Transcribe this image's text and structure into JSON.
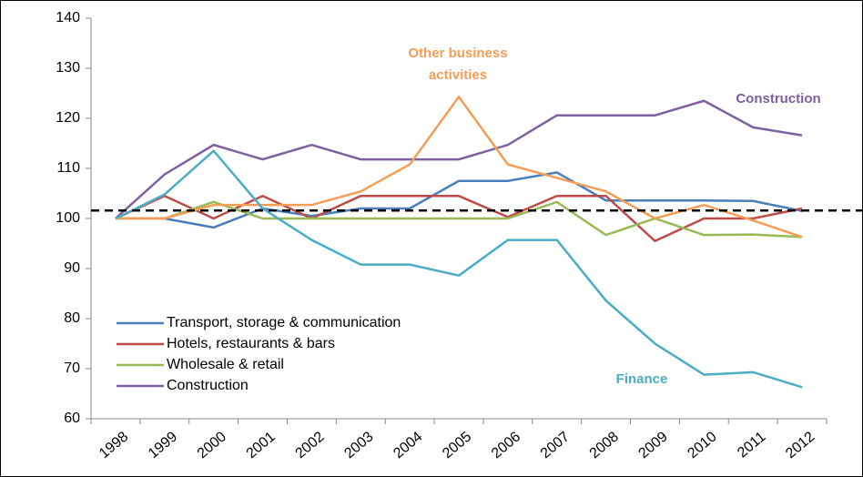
{
  "chart_data": {
    "type": "line",
    "categories": [
      "1998",
      "1999",
      "2000",
      "2001",
      "2002",
      "2003",
      "2004",
      "2005",
      "2006",
      "2007",
      "2008",
      "2009",
      "2010",
      "2011",
      "2012"
    ],
    "series": [
      {
        "name": "Transport, storage & communication",
        "color": "#4a7ebb",
        "in_legend": true,
        "values": [
          100,
          100,
          98.2,
          102,
          100.5,
          102,
          102,
          107.5,
          107.5,
          109.2,
          103.6,
          103.6,
          103.6,
          103.5,
          101.5
        ]
      },
      {
        "name": "Hotels, restaurants & bars",
        "color": "#be4b48",
        "in_legend": true,
        "values": [
          100,
          104.5,
          100,
          104.5,
          100,
          104.5,
          104.5,
          104.5,
          100.3,
          104.5,
          104.5,
          95.5,
          100,
          100,
          102
        ]
      },
      {
        "name": "Wholesale & retail",
        "color": "#98b954",
        "in_legend": true,
        "values": [
          100,
          100,
          103.3,
          100,
          100,
          100,
          100,
          100,
          100,
          103.3,
          96.7,
          100,
          96.7,
          96.8,
          96.3
        ]
      },
      {
        "name": "Construction",
        "color": "#7d60a0",
        "in_legend": true,
        "values": [
          100,
          108.8,
          114.7,
          111.8,
          114.7,
          111.8,
          111.8,
          111.8,
          114.7,
          120.6,
          120.6,
          120.6,
          123.5,
          118.2,
          116.6
        ]
      },
      {
        "name": "Other business activities",
        "color": "#f59d56",
        "in_legend": false,
        "values": [
          100,
          100,
          102.7,
          102.7,
          102.7,
          105.4,
          110.8,
          124.3,
          110.8,
          108.1,
          105.4,
          100,
          102.7,
          99.6,
          96.3
        ]
      },
      {
        "name": "Finance",
        "color": "#4bacc6",
        "in_legend": false,
        "values": [
          100,
          104.8,
          113.5,
          102,
          95.7,
          90.8,
          90.8,
          88.6,
          95.7,
          95.7,
          83.6,
          75,
          68.8,
          69.3,
          66.3
        ]
      }
    ],
    "annotations": [
      {
        "text": "Other business activities",
        "series": 4
      },
      {
        "text": "Construction",
        "series": 3
      },
      {
        "text": "Finance",
        "series": 5
      }
    ],
    "reference_line": 101.6,
    "ylim": [
      60,
      140
    ],
    "yticks": [
      60,
      70,
      80,
      90,
      100,
      110,
      120,
      130,
      140
    ],
    "grid": false,
    "legend": "lower-left"
  }
}
